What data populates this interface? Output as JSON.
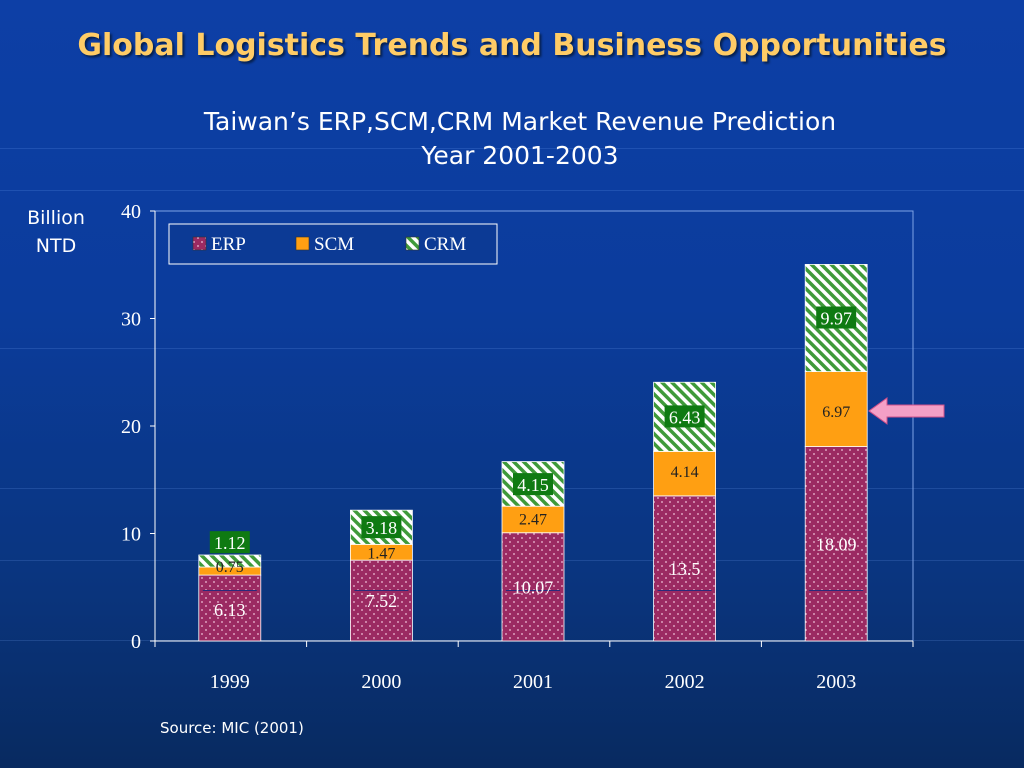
{
  "slide": {
    "title": "Global Logistics Trends and Business Opportunities",
    "chart_title_line1": "Taiwan’s ERP,SCM,CRM Market Revenue Prediction",
    "chart_title_line2": "Year 2001-2003",
    "unit_line1": "Billion",
    "unit_line2": "NTD",
    "source": "Source: MIC (2001)"
  },
  "colors": {
    "erp": "#9b2a62",
    "scm": "#ff9f12",
    "crm": "#3f9a3a",
    "crm_label_bg": "#0f7a12",
    "arrow": "#f4a0c6"
  },
  "chart_data": {
    "type": "bar",
    "stacked": true,
    "categories": [
      "1999",
      "2000",
      "2001",
      "2002",
      "2003"
    ],
    "series": [
      {
        "name": "ERP",
        "values": [
          6.13,
          7.52,
          10.07,
          13.5,
          18.09
        ]
      },
      {
        "name": "SCM",
        "values": [
          0.75,
          1.47,
          2.47,
          4.14,
          6.97
        ]
      },
      {
        "name": "CRM",
        "values": [
          1.12,
          3.18,
          4.15,
          6.43,
          9.97
        ]
      }
    ],
    "ylim": [
      0,
      40
    ],
    "yticks": [
      0,
      10,
      20,
      30,
      40
    ],
    "legend_position": "top-left",
    "annotation": "arrow pointing at 2003 SCM segment"
  }
}
